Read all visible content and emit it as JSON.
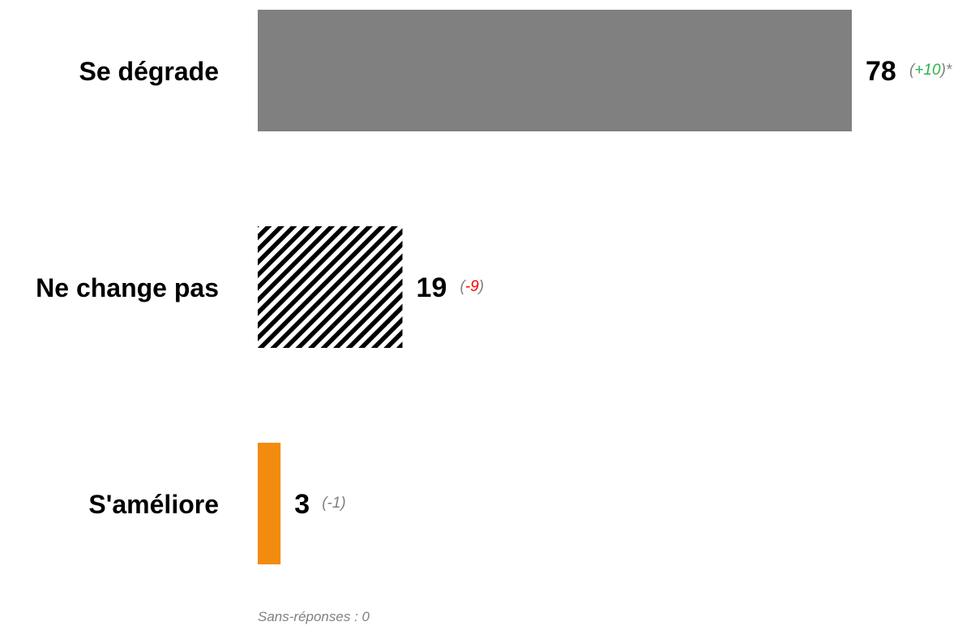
{
  "chart_data": {
    "type": "bar",
    "orientation": "horizontal",
    "categories": [
      "Se dégrade",
      "Ne change pas",
      "S'améliore"
    ],
    "values": [
      78,
      19,
      3
    ],
    "value_labels": [
      "78",
      "19",
      "3"
    ],
    "changes": [
      {
        "paren_open": "(",
        "delta": "+10",
        "paren_close": ")*",
        "delta_color": "#2bb24c"
      },
      {
        "paren_open": "(",
        "delta": "-9",
        "paren_close": ")",
        "delta_color": "#ff0000"
      },
      {
        "paren_open": "(",
        "delta": "-1",
        "paren_close": ")",
        "delta_color": "#808080"
      }
    ],
    "bar_styles": [
      {
        "fill": "#808080",
        "pattern": "solid"
      },
      {
        "fill": "#000000",
        "pattern": "diagonal-stripes"
      },
      {
        "fill": "#f28c0f",
        "pattern": "solid"
      }
    ],
    "xlim": [
      0,
      78
    ],
    "grid": false,
    "legend": "none"
  },
  "footnote": "Sans-réponses : 0"
}
